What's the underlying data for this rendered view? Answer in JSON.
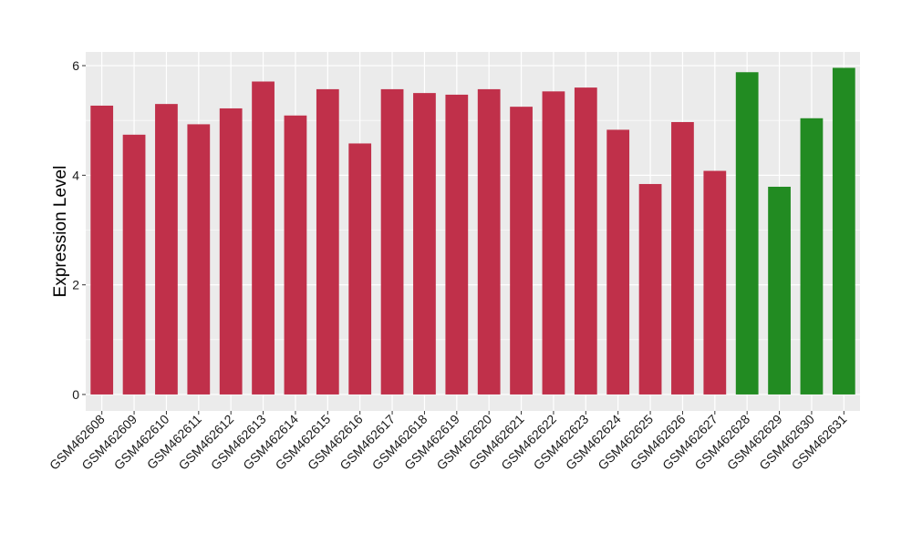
{
  "chart_data": {
    "type": "bar",
    "title": "",
    "xlabel": "",
    "ylabel": "Expression Level",
    "ylim": [
      -0.3,
      6.25
    ],
    "yticks": [
      0,
      2,
      4,
      6
    ],
    "grid": true,
    "legend": "none",
    "categories": [
      "GSM462608",
      "GSM462609",
      "GSM462610",
      "GSM462611",
      "GSM462612",
      "GSM462613",
      "GSM462614",
      "GSM462615",
      "GSM462616",
      "GSM462617",
      "GSM462618",
      "GSM462619",
      "GSM462620",
      "GSM462621",
      "GSM462622",
      "GSM462623",
      "GSM462624",
      "GSM462625",
      "GSM462626",
      "GSM462627",
      "GSM462628",
      "GSM462629",
      "GSM462630",
      "GSM462631"
    ],
    "values": [
      5.27,
      4.74,
      5.3,
      4.93,
      5.22,
      5.71,
      5.09,
      5.57,
      4.58,
      5.57,
      5.5,
      5.47,
      5.57,
      5.25,
      5.53,
      5.6,
      4.83,
      3.84,
      4.97,
      4.08,
      5.88,
      3.79,
      5.04,
      5.96
    ],
    "groups": [
      "red",
      "red",
      "red",
      "red",
      "red",
      "red",
      "red",
      "red",
      "red",
      "red",
      "red",
      "red",
      "red",
      "red",
      "red",
      "red",
      "red",
      "red",
      "red",
      "red",
      "green",
      "green",
      "green",
      "green"
    ],
    "colors": {
      "red": "#C0304A",
      "green": "#228B22"
    },
    "panel_background": "#EBEBEB",
    "gridline_color": "#FFFFFF"
  }
}
